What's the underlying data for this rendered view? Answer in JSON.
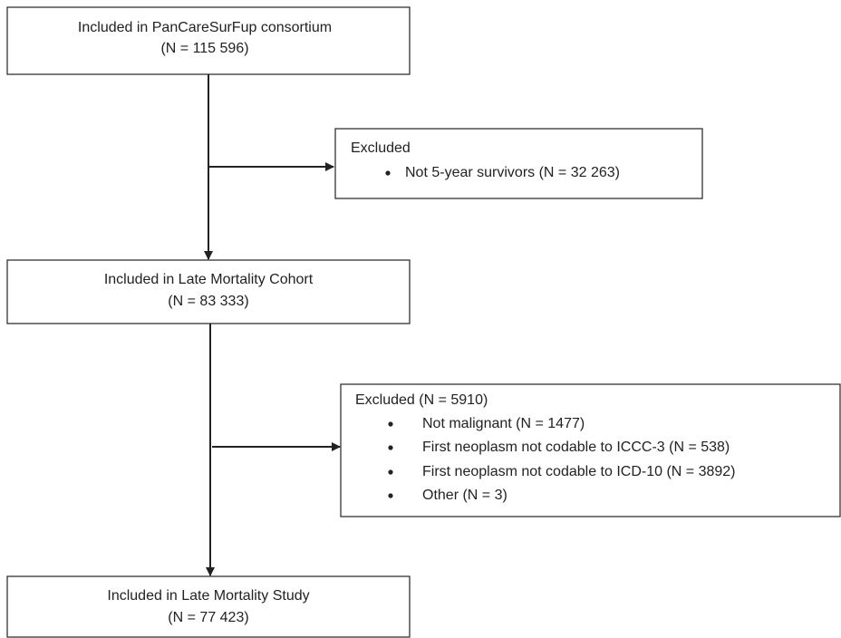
{
  "boxes": [
    {
      "lines": [
        "Included in PanCareSurFup consortium",
        "(N = 115 596)"
      ]
    },
    {
      "heading": "Excluded",
      "bullets": [
        "Not 5-year survivors (N = 32 263)"
      ]
    },
    {
      "lines": [
        "Included in Late Mortality Cohort",
        "(N = 83 333)"
      ]
    },
    {
      "heading": "Excluded (N = 5910)",
      "bullets": [
        "Not malignant (N = 1477)",
        "First neoplasm not codable to ICCC-3 (N = 538)",
        "First neoplasm not codable to ICD-10 (N = 3892)",
        "Other (N = 3)"
      ]
    },
    {
      "lines": [
        "Included in Late Mortality Study",
        "(N = 77 423)"
      ]
    }
  ]
}
